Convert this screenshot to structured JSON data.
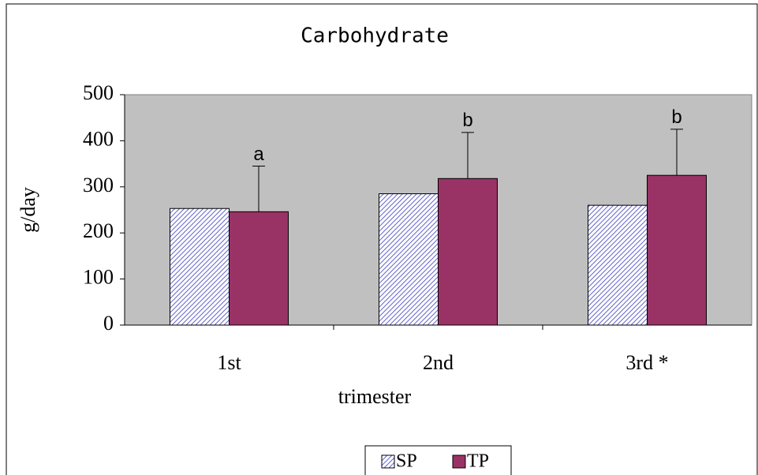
{
  "chart_data": {
    "type": "bar",
    "title": "Carbohydrate",
    "categories": [
      "1st",
      "2nd",
      "3rd *"
    ],
    "series": [
      {
        "name": "SP",
        "color": "#6666cc",
        "pattern": "hatch",
        "values": [
          253,
          285,
          260
        ]
      },
      {
        "name": "TP",
        "color": "#993366",
        "values": [
          246,
          318,
          325
        ],
        "errors": [
          99,
          100,
          100
        ],
        "annotations": [
          "a",
          "b",
          "b"
        ]
      }
    ],
    "xlabel": "trimester",
    "ylabel": "g/day",
    "ylim": [
      0,
      500
    ],
    "yticks": [
      0,
      100,
      200,
      300,
      400,
      500
    ],
    "plot_background": "#c0c0c0",
    "legend": "bottom"
  }
}
